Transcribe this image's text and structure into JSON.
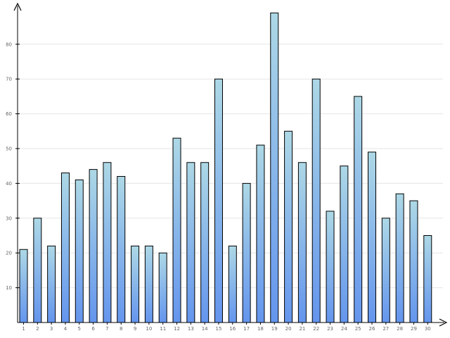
{
  "chart_data": {
    "type": "bar",
    "categories": [
      "1",
      "2",
      "3",
      "4",
      "5",
      "6",
      "7",
      "8",
      "9",
      "10",
      "11",
      "12",
      "13",
      "14",
      "15",
      "16",
      "17",
      "18",
      "19",
      "20",
      "21",
      "22",
      "23",
      "24",
      "25",
      "26",
      "27",
      "28",
      "29",
      "30"
    ],
    "values": [
      21,
      30,
      22,
      43,
      41,
      44,
      46,
      42,
      22,
      22,
      20,
      53,
      46,
      46,
      70,
      22,
      40,
      51,
      89,
      55,
      46,
      70,
      32,
      45,
      65,
      49,
      30,
      37,
      35,
      25
    ],
    "y_ticks": [
      "10",
      "20",
      "30",
      "40",
      "50",
      "60",
      "70",
      "80"
    ],
    "title": "",
    "xlabel": "",
    "ylabel": "",
    "ylim": [
      0,
      90
    ],
    "grid": "horizontal",
    "legend": "none",
    "colors": {
      "bar_top": "#add8e6",
      "bar_bottom": "#6495ed",
      "bar_stroke": "#000000",
      "grid": "#e6e6e6",
      "axis": "#000000",
      "tick_text": "#666666"
    }
  }
}
